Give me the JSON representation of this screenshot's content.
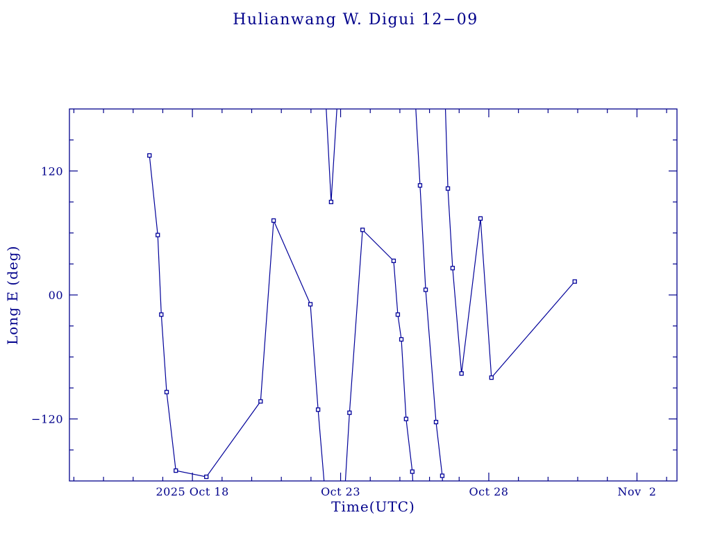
{
  "chart_data": {
    "type": "line",
    "title": "Hulianwang W. Digui 12−09",
    "xlabel": "Time(UTC)",
    "ylabel": "Long E (deg)",
    "x_unit": "day of October 2025 (33 = Nov 2)",
    "xlim": [
      13.85,
      34.35
    ],
    "ylim": [
      -180,
      180
    ],
    "grid": false,
    "legend": "none",
    "axis_color": "#00008B",
    "line_color": "#000099",
    "xticks": [
      {
        "value": 18,
        "label": "2025 Oct 18"
      },
      {
        "value": 23,
        "label": "Oct 23"
      },
      {
        "value": 28,
        "label": "Oct 28"
      },
      {
        "value": 33,
        "label": "Nov  2"
      }
    ],
    "yticks": [
      {
        "value": 120,
        "label": "120"
      },
      {
        "value": 0,
        "label": "00"
      },
      {
        "value": -120,
        "label": "−120"
      }
    ],
    "segments": [
      {
        "points": [
          [
            16.55,
            135
          ],
          [
            16.83,
            58
          ],
          [
            16.95,
            -19
          ],
          [
            17.13,
            -94
          ],
          [
            17.44,
            -170
          ],
          [
            18.47,
            -176
          ],
          [
            20.3,
            -103
          ],
          [
            20.74,
            72
          ],
          [
            21.98,
            -9
          ],
          [
            22.24,
            -111
          ],
          [
            22.5,
            -200
          ]
        ]
      },
      {
        "points": [
          [
            22.45,
            215
          ],
          [
            22.68,
            90
          ],
          [
            22.95,
            215
          ]
        ]
      },
      {
        "points": [
          [
            23.12,
            -200
          ],
          [
            23.3,
            -114
          ],
          [
            23.74,
            63
          ],
          [
            24.79,
            33
          ],
          [
            24.93,
            -19
          ],
          [
            25.05,
            -43
          ],
          [
            25.21,
            -120
          ],
          [
            25.42,
            -171
          ],
          [
            25.47,
            -200
          ]
        ]
      },
      {
        "points": [
          [
            25.47,
            215
          ],
          [
            25.68,
            106
          ],
          [
            25.87,
            5
          ],
          [
            26.22,
            -123
          ],
          [
            26.43,
            -175
          ],
          [
            26.47,
            -200
          ]
        ]
      },
      {
        "points": [
          [
            26.5,
            215
          ],
          [
            26.62,
            103
          ],
          [
            26.78,
            26
          ],
          [
            27.08,
            -76
          ],
          [
            27.72,
            74
          ],
          [
            28.09,
            -80
          ],
          [
            30.9,
            13
          ]
        ]
      }
    ]
  }
}
